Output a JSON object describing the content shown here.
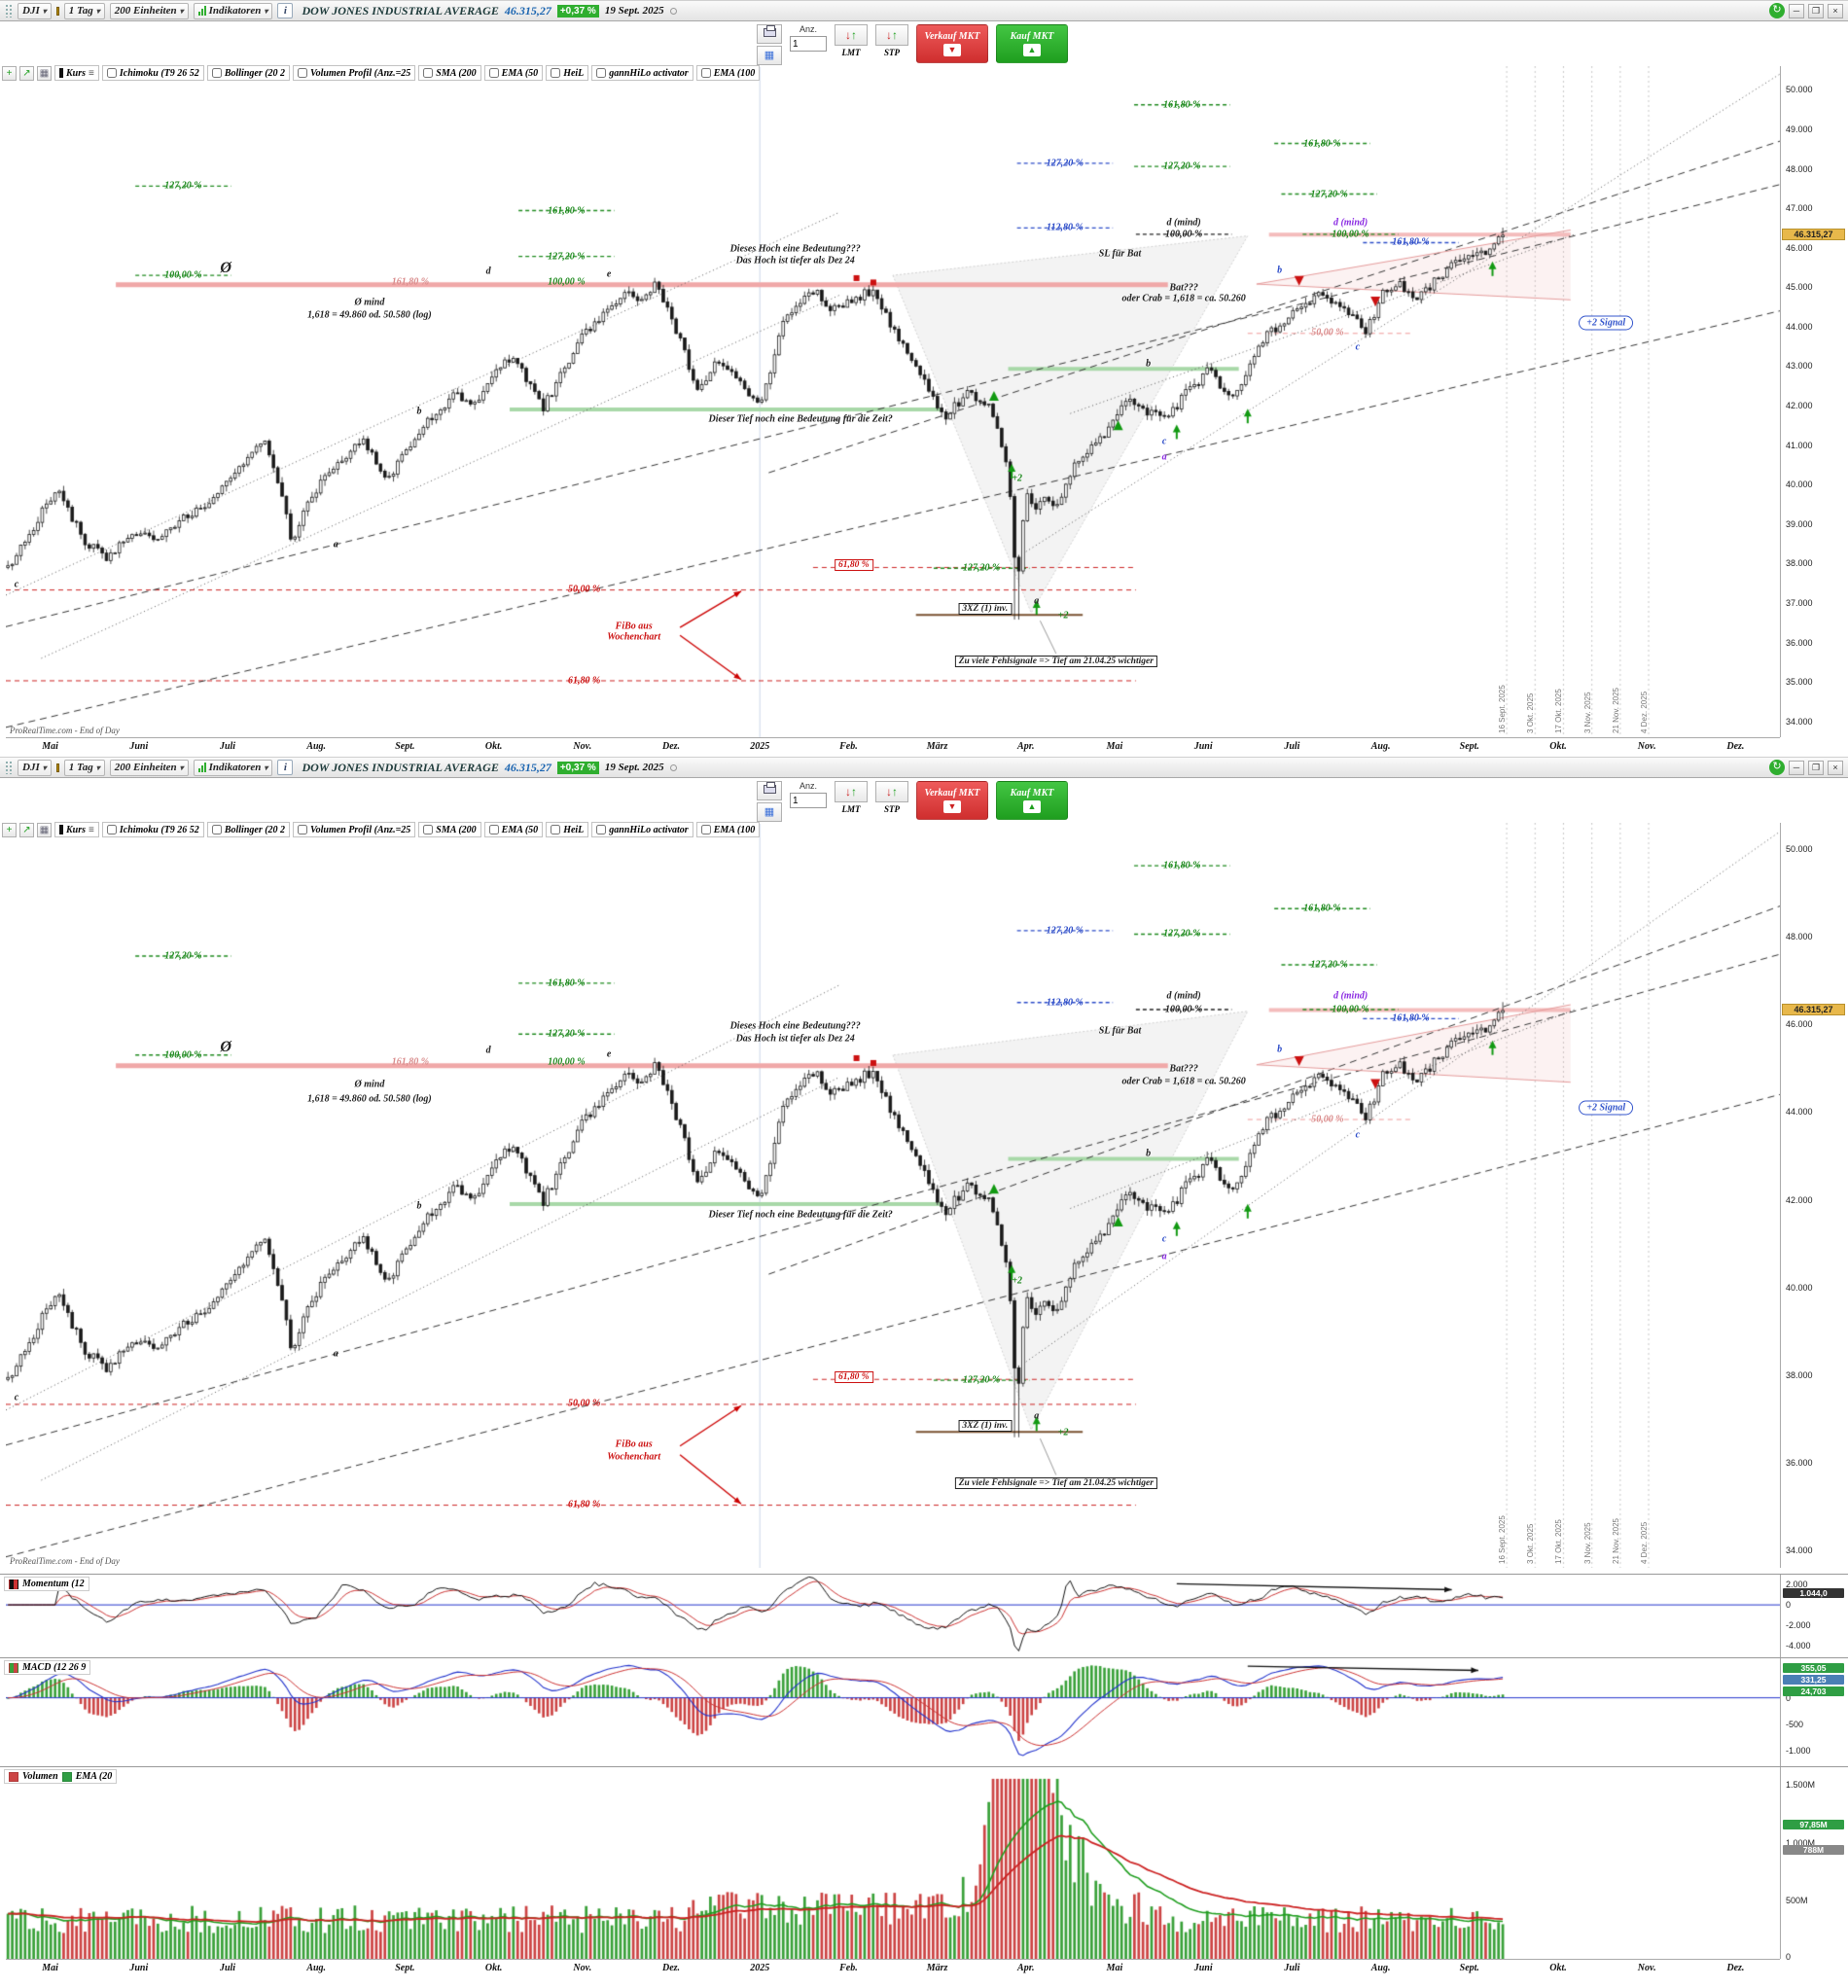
{
  "titlebar": {
    "symbol": "DJI",
    "timeframe": "1 Tag",
    "units": "200 Einheiten",
    "indicators": "Indikatoren",
    "info": "i",
    "title": "DOW JONES INDUSTRIAL AVERAGE",
    "price": "46.315,27",
    "change": "+0,37 %",
    "date": "19 Sept. 2025",
    "refresh": "↻",
    "minimize": "─",
    "restore": "❐",
    "close": "×"
  },
  "order": {
    "qty_label": "Anz.",
    "qty": "1",
    "lmt": "LMT",
    "stp": "STP",
    "sell": "Verkauf MKT",
    "buy": "Kauf MKT",
    "sell_icon": "▼",
    "buy_icon": "▲"
  },
  "legend": {
    "kurs": "Kurs",
    "items": [
      "Ichimoku (T9 26 52",
      "Bollinger (20 2",
      "Volumen Profil (Anz.=25",
      "SMA (200",
      "EMA (50",
      "HeiL",
      "gannHiLo activator",
      "EMA (100"
    ]
  },
  "chart_data": {
    "type": "candlestick",
    "title": "DOW JONES INDUSTRIAL AVERAGE",
    "watermark": "ProRealTime.com - End of Day",
    "price_badge": "46.315,27",
    "last_price": 46315,
    "price_range": [
      33600,
      50600
    ],
    "data_span": 0.845,
    "n_candles": 350,
    "x_ticks": [
      "Mai",
      "Juni",
      "Juli",
      "Aug.",
      "Sept.",
      "Okt.",
      "Nov.",
      "Dez.",
      "2025",
      "Feb.",
      "März",
      "Apr.",
      "Mai",
      "Juni",
      "Juli",
      "Aug.",
      "Sept.",
      "Okt.",
      "Nov.",
      "Dez."
    ],
    "y_ticks_main": [
      {
        "t": "50.000",
        "v": 50000
      },
      {
        "t": "49.000",
        "v": 49000
      },
      {
        "t": "48.000",
        "v": 48000
      },
      {
        "t": "47.000",
        "v": 47000
      },
      {
        "t": "46.000",
        "v": 46000
      },
      {
        "t": "45.000",
        "v": 45000
      },
      {
        "t": "44.000",
        "v": 44000
      },
      {
        "t": "43.000",
        "v": 43000
      },
      {
        "t": "42.000",
        "v": 42000
      },
      {
        "t": "41.000",
        "v": 41000
      },
      {
        "t": "40.000",
        "v": 40000
      },
      {
        "t": "39.000",
        "v": 39000
      },
      {
        "t": "38.000",
        "v": 38000
      },
      {
        "t": "37.000",
        "v": 37000
      },
      {
        "t": "36.000",
        "v": 36000
      },
      {
        "t": "35.000",
        "v": 35000
      },
      {
        "t": "34.000",
        "v": 34000
      }
    ],
    "y_ticks_secondary": [
      {
        "t": "50.000",
        "v": 50000
      },
      {
        "t": "48.000",
        "v": 48000
      },
      {
        "t": "46.000",
        "v": 46000
      },
      {
        "t": "44.000",
        "v": 44000
      },
      {
        "t": "42.000",
        "v": 42000
      },
      {
        "t": "40.000",
        "v": 40000
      },
      {
        "t": "38.000",
        "v": 38000
      },
      {
        "t": "36.000",
        "v": 36000
      },
      {
        "t": "34.000",
        "v": 34000
      }
    ],
    "future_dates": [
      "16 Sept. 2025",
      "3 Okt. 2025",
      "17 Okt. 2025",
      "3 Nov. 2025",
      "21 Nov. 2025",
      "4 Dez. 2025"
    ],
    "future_x": [
      0.846,
      0.862,
      0.878,
      0.894,
      0.91,
      0.926
    ],
    "colors": {
      "g": "#1e8a1e",
      "p": "#d98c8c",
      "r": "#cc1111",
      "b": "#2b4bc8",
      "v": "#8a2be2",
      "k": "#222222"
    },
    "anchors": [
      [
        0.0,
        37900
      ],
      [
        0.012,
        38600
      ],
      [
        0.033,
        39950
      ],
      [
        0.05,
        38600
      ],
      [
        0.066,
        38150
      ],
      [
        0.09,
        38900
      ],
      [
        0.1,
        38500
      ],
      [
        0.114,
        39100
      ],
      [
        0.13,
        39400
      ],
      [
        0.15,
        40300
      ],
      [
        0.172,
        41200
      ],
      [
        0.181,
        40000
      ],
      [
        0.19,
        38600
      ],
      [
        0.21,
        40200
      ],
      [
        0.238,
        41150
      ],
      [
        0.253,
        40050
      ],
      [
        0.27,
        41100
      ],
      [
        0.298,
        42300
      ],
      [
        0.31,
        42000
      ],
      [
        0.337,
        43300
      ],
      [
        0.358,
        41950
      ],
      [
        0.385,
        43800
      ],
      [
        0.413,
        44900
      ],
      [
        0.425,
        44700
      ],
      [
        0.434,
        45100
      ],
      [
        0.45,
        43600
      ],
      [
        0.461,
        42400
      ],
      [
        0.475,
        43100
      ],
      [
        0.49,
        42600
      ],
      [
        0.503,
        41950
      ],
      [
        0.52,
        44300
      ],
      [
        0.539,
        44950
      ],
      [
        0.55,
        44500
      ],
      [
        0.565,
        44600
      ],
      [
        0.578,
        44950
      ],
      [
        0.6,
        43400
      ],
      [
        0.615,
        42500
      ],
      [
        0.627,
        41650
      ],
      [
        0.64,
        42300
      ],
      [
        0.657,
        42000
      ],
      [
        0.669,
        40400
      ],
      [
        0.675,
        37300
      ],
      [
        0.681,
        39900
      ],
      [
        0.687,
        39300
      ],
      [
        0.693,
        39700
      ],
      [
        0.7,
        39300
      ],
      [
        0.71,
        40300
      ],
      [
        0.72,
        40700
      ],
      [
        0.735,
        41300
      ],
      [
        0.75,
        42200
      ],
      [
        0.765,
        41800
      ],
      [
        0.777,
        41750
      ],
      [
        0.79,
        42400
      ],
      [
        0.804,
        42900
      ],
      [
        0.819,
        42100
      ],
      [
        0.83,
        42900
      ],
      [
        0.842,
        43800
      ],
      [
        0.855,
        44200
      ],
      [
        0.868,
        44500
      ],
      [
        0.88,
        44850
      ],
      [
        0.895,
        44450
      ],
      [
        0.902,
        44300
      ],
      [
        0.907,
        43700
      ],
      [
        0.92,
        44900
      ],
      [
        0.931,
        45050
      ],
      [
        0.94,
        44750
      ],
      [
        0.95,
        44950
      ],
      [
        0.962,
        45450
      ],
      [
        0.976,
        45800
      ],
      [
        0.988,
        45900
      ],
      [
        1.0,
        46315
      ]
    ],
    "lines": [
      {
        "x1": 0.062,
        "p1": 45060,
        "x2": 0.655,
        "p2": 45060,
        "c": "#f0a8a8",
        "w": 5
      },
      {
        "x1": 0.712,
        "p1": 46330,
        "x2": 0.882,
        "p2": 46330,
        "c": "#f4bcbc",
        "w": 4
      },
      {
        "x1": 0.284,
        "p1": 41900,
        "x2": 0.528,
        "p2": 41900,
        "c": "#a8d8a8",
        "w": 4
      },
      {
        "x1": 0.565,
        "p1": 42930,
        "x2": 0.695,
        "p2": 42930,
        "c": "#a8d8a8",
        "w": 4
      },
      {
        "x1": 0.0,
        "p1": 37330,
        "x2": 0.637,
        "p2": 37330,
        "c": "#cc2222",
        "w": 1,
        "d": [
          5,
          4
        ]
      },
      {
        "x1": 0.0,
        "p1": 35030,
        "x2": 0.637,
        "p2": 35030,
        "c": "#cc2222",
        "w": 1,
        "d": [
          5,
          4
        ]
      },
      {
        "x1": 0.455,
        "p1": 37900,
        "x2": 0.637,
        "p2": 37900,
        "c": "#cc2222",
        "w": 1,
        "d": [
          5,
          4
        ]
      },
      {
        "x1": 0.513,
        "p1": 36700,
        "x2": 0.607,
        "p2": 36700,
        "c": "#7a5230",
        "w": 2
      },
      {
        "x1": 0.7,
        "p1": 43830,
        "x2": 0.792,
        "p2": 43830,
        "c": "#ee9999",
        "w": 1,
        "d": [
          5,
          4
        ]
      },
      {
        "x1": 0.0,
        "p1": 36400,
        "x2": 1.0,
        "p2": 47600,
        "c": "#333333",
        "w": 1,
        "d": [
          7,
          5
        ]
      },
      {
        "x1": 0.0,
        "p1": 33850,
        "x2": 1.0,
        "p2": 44400,
        "c": "#333333",
        "w": 1,
        "d": [
          7,
          5
        ]
      },
      {
        "x1": 0.0,
        "p1": 37200,
        "x2": 0.47,
        "p2": 46900,
        "c": "#555555",
        "w": 1,
        "d": [
          1,
          3
        ]
      },
      {
        "x1": 0.02,
        "p1": 35600,
        "x2": 0.47,
        "p2": 44800,
        "c": "#555555",
        "w": 1,
        "d": [
          1,
          3
        ]
      },
      {
        "x1": 0.575,
        "p1": 38300,
        "x2": 1.0,
        "p2": 50400,
        "c": "#555555",
        "w": 1,
        "d": [
          1,
          3
        ]
      },
      {
        "x1": 0.43,
        "p1": 40300,
        "x2": 1.0,
        "p2": 48700,
        "c": "#333333",
        "w": 1,
        "d": [
          7,
          5
        ]
      },
      {
        "x1": 0.6,
        "p1": 41800,
        "x2": 0.885,
        "p2": 46350,
        "c": "#555555",
        "w": 1,
        "d": [
          1,
          3
        ]
      },
      {
        "x1": 0.705,
        "p1": 45080,
        "x2": 0.882,
        "p2": 46450,
        "c": "#e49a9a",
        "w": 1
      },
      {
        "x1": 0.705,
        "p1": 45080,
        "x2": 0.882,
        "p2": 44680,
        "c": "#e49a9a",
        "w": 1
      },
      {
        "x1": 0.592,
        "p1": 35720,
        "x2": 0.583,
        "p2": 36550,
        "c": "#999999",
        "w": 1
      }
    ],
    "shapes": [
      {
        "pts": [
          [
            0.5,
            45300
          ],
          [
            0.578,
            36750
          ],
          [
            0.7,
            46300
          ]
        ],
        "f": "rgba(140,140,140,0.10)",
        "s": "#d0d0d0",
        "d": [
          2,
          2
        ]
      },
      {
        "pts": [
          [
            0.705,
            45080
          ],
          [
            0.882,
            46450
          ],
          [
            0.882,
            44680
          ]
        ],
        "f": "rgba(235,160,160,0.14)"
      }
    ],
    "arrows": [
      {
        "x1": 0.38,
        "p1": 36380,
        "x2": 0.4145,
        "p2": 37300,
        "c": "#cc0000"
      },
      {
        "x1": 0.38,
        "p1": 36180,
        "x2": 0.4145,
        "p2": 35060,
        "c": "#cc0000"
      }
    ],
    "markers": [
      [
        "rs",
        0.4795,
        45230
      ],
      [
        "rs",
        0.489,
        45120
      ],
      [
        "rt",
        0.729,
        45160
      ],
      [
        "rt",
        0.772,
        44640
      ],
      [
        "gt",
        0.557,
        42250
      ],
      [
        "gt",
        0.627,
        41500
      ],
      [
        "ga",
        0.567,
        40350
      ],
      [
        "ga",
        0.581,
        36900
      ],
      [
        "ga",
        0.66,
        41350
      ],
      [
        "ga",
        0.7,
        41750
      ],
      [
        "ga",
        0.838,
        45480
      ]
    ],
    "labels": [
      [
        "127,20 %",
        0.1,
        47560,
        "g",
        "s"
      ],
      [
        "100,00 %",
        0.1,
        45300,
        "g",
        "s"
      ],
      [
        "Ø",
        0.124,
        45480,
        "k",
        "big"
      ],
      [
        "Ø mind",
        0.205,
        44620,
        "k",
        ""
      ],
      [
        "1,618 = 49.860 od. 50.580 (log)",
        0.205,
        44300,
        "k",
        ""
      ],
      [
        "161,80 %",
        0.228,
        45140,
        "p",
        ""
      ],
      [
        "d",
        0.272,
        45400,
        "k",
        ""
      ],
      [
        "161,80 %",
        0.316,
        46940,
        "g",
        "s"
      ],
      [
        "127,20 %",
        0.316,
        45780,
        "g",
        "s"
      ],
      [
        "100,00 %",
        0.316,
        45140,
        "g",
        ""
      ],
      [
        "e",
        0.34,
        45320,
        "k",
        ""
      ],
      [
        "161,80 %",
        0.663,
        49620,
        "g",
        "s"
      ],
      [
        "127,20 %",
        0.597,
        48140,
        "b",
        "s"
      ],
      [
        "127,20 %",
        0.663,
        48060,
        "g",
        "s"
      ],
      [
        "161,80 %",
        0.742,
        48640,
        "g",
        "s"
      ],
      [
        "127,20 %",
        0.746,
        47360,
        "g",
        "s"
      ],
      [
        "112,80 %",
        0.597,
        46500,
        "b",
        "s"
      ],
      [
        "d (mind)",
        0.664,
        46640,
        "k",
        ""
      ],
      [
        "100,00 %",
        0.664,
        46340,
        "k",
        "s"
      ],
      [
        "d (mind)",
        0.758,
        46640,
        "v",
        ""
      ],
      [
        "100,00 %",
        0.758,
        46340,
        "g",
        "s"
      ],
      [
        "161,80 %",
        0.792,
        46130,
        "b",
        "s"
      ],
      [
        "SL für Bat",
        0.628,
        45850,
        "k",
        ""
      ],
      [
        "Bat???",
        0.664,
        44980,
        "k",
        ""
      ],
      [
        "oder Crab = 1,618 = ca. 50.260",
        0.664,
        44700,
        "k",
        ""
      ],
      [
        "50,00 %",
        0.745,
        43840,
        "p",
        ""
      ],
      [
        "b",
        0.718,
        45420,
        "b",
        ""
      ],
      [
        "c",
        0.762,
        43480,
        "b",
        ""
      ],
      [
        "b",
        0.644,
        43060,
        "k",
        ""
      ],
      [
        "c",
        0.653,
        41100,
        "b",
        ""
      ],
      [
        "a",
        0.653,
        40700,
        "v",
        ""
      ],
      [
        "Dieses Hoch eine Bedeutung???",
        0.445,
        45960,
        "k",
        ""
      ],
      [
        "Das Hoch ist tiefer als Dez 24",
        0.445,
        45680,
        "k",
        ""
      ],
      [
        "Dieser Tief noch eine Bedeutung für die Zeit?",
        0.448,
        41660,
        "k",
        ""
      ],
      [
        "61,80 %",
        0.478,
        37950,
        "r",
        "box"
      ],
      [
        "127,20 %",
        0.55,
        37880,
        "g",
        "s"
      ],
      [
        "50,00 %",
        0.326,
        37340,
        "r",
        ""
      ],
      [
        "61,80 %",
        0.326,
        35040,
        "r",
        ""
      ],
      [
        "FiBo aus",
        0.354,
        36420,
        "r",
        ""
      ],
      [
        "Wochenchart",
        0.354,
        36140,
        "r",
        ""
      ],
      [
        "3XZ (1) inv.",
        0.552,
        36840,
        "k",
        "box"
      ],
      [
        "Zu viele Fehlsignale => Tief am 21.04.25 wichtiger",
        0.592,
        35520,
        "k",
        "box"
      ],
      [
        "+2 Signal",
        0.902,
        44100,
        "b",
        "bubble"
      ],
      [
        "c",
        0.006,
        37480,
        "k",
        ""
      ],
      [
        "a",
        0.186,
        38480,
        "k",
        ""
      ],
      [
        "b",
        0.233,
        41850,
        "k",
        ""
      ],
      [
        "a",
        0.581,
        37060,
        "k",
        ""
      ],
      [
        "+2",
        0.57,
        40150,
        "g",
        ""
      ],
      [
        "+2",
        0.596,
        36680,
        "g",
        ""
      ]
    ],
    "momentum": {
      "label": "Momentum (12",
      "range": [
        -5200,
        3000
      ],
      "ticks": [
        {
          "t": "2.000",
          "v": 2000
        },
        {
          "t": "0",
          "v": 0
        },
        {
          "t": "-2.000",
          "v": -2000
        },
        {
          "t": "-4.000",
          "v": -4000
        }
      ],
      "badge": {
        "t": "1.044,0",
        "v": 1044
      },
      "arrow": {
        "x1": 0.66,
        "v1": 2100,
        "x2": 0.815,
        "v2": 1500
      }
    },
    "macd": {
      "label": "MACD (12 26 9",
      "range": [
        -1300,
        750
      ],
      "ticks": [
        {
          "t": "0",
          "v": 0
        },
        {
          "t": "-500",
          "v": -500
        },
        {
          "t": "-1.000",
          "v": -1000
        }
      ],
      "badges": [
        {
          "t": "355,05",
          "v": 540,
          "c": "#2f9e44"
        },
        {
          "t": "331,25",
          "v": 330,
          "c": "#4a7fb5"
        },
        {
          "t": "24,703",
          "v": 110,
          "c": "#2f9e44"
        }
      ],
      "arrow": {
        "x1": 0.7,
        "v1": 600,
        "x2": 0.83,
        "v2": 520
      }
    },
    "volume": {
      "label": "Volumen",
      "label2": "EMA (20",
      "range": [
        0,
        1650
      ],
      "ticks": [
        {
          "t": "1.500M",
          "v": 1500
        },
        {
          "t": "1.000M",
          "v": 1000
        },
        {
          "t": "500M",
          "v": 500
        },
        {
          "t": "0",
          "v": 15
        }
      ],
      "badges": [
        {
          "t": "97,85M",
          "v": 1150,
          "c": "#2f9e44"
        },
        {
          "t": "788M",
          "v": 930,
          "c": "#888888"
        }
      ]
    }
  }
}
